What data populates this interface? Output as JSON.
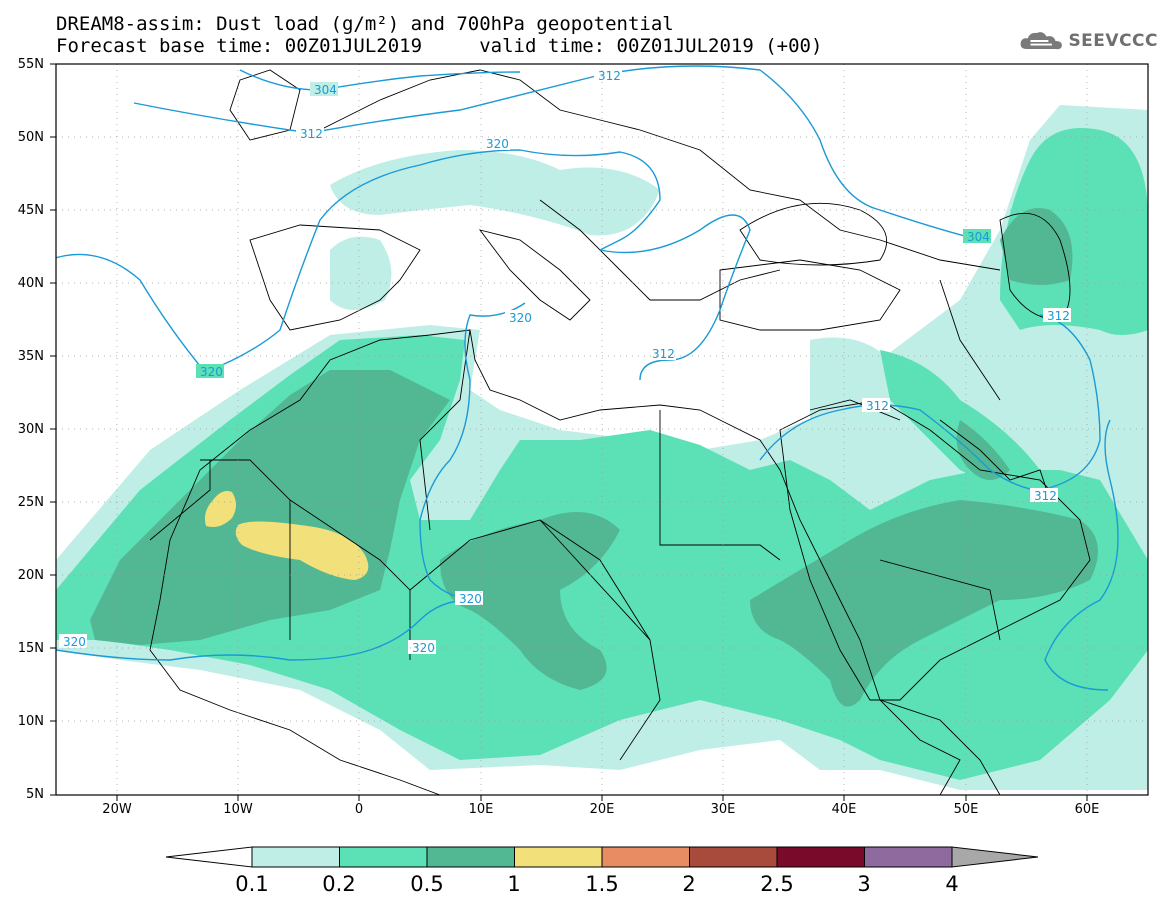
{
  "header": {
    "title_line1": "DREAM8-assim: Dust load (g/m²) and 700hPa geopotential",
    "title_line2": "Forecast base time: 00Z01JUL2019     valid time: 00Z01JUL2019 (+00)",
    "logo_text": "SEEVCCC"
  },
  "map": {
    "lon_range": [
      -25,
      65
    ],
    "lat_range": [
      5,
      55
    ],
    "lat_labels": [
      "55N",
      "50N",
      "45N",
      "40N",
      "35N",
      "30N",
      "25N",
      "20N",
      "15N",
      "10N",
      "5N"
    ],
    "lon_labels": [
      "20W",
      "10W",
      "0",
      "10E",
      "20E",
      "30E",
      "40E",
      "50E",
      "60E"
    ],
    "contour_labels": [
      "304",
      "312",
      "320",
      "320",
      "312",
      "320",
      "312",
      "320",
      "320",
      "320",
      "304",
      "312",
      "312",
      "312"
    ],
    "contour_color": "#1a9ad6"
  },
  "colorbar": {
    "levels": [
      "0.1",
      "0.2",
      "0.5",
      "1",
      "1.5",
      "2",
      "2.5",
      "3",
      "4"
    ],
    "colors": [
      "#bfeee6",
      "#5ce0b6",
      "#52b894",
      "#f2e07a",
      "#e88c64",
      "#a84a3c",
      "#7a0a2a",
      "#8e6a9e",
      "#a8a8a8"
    ]
  },
  "dust_colors": {
    "light": "#bfeee6",
    "medium": "#5ce0b6",
    "dark": "#52b894",
    "yellow": "#f2e07a"
  }
}
